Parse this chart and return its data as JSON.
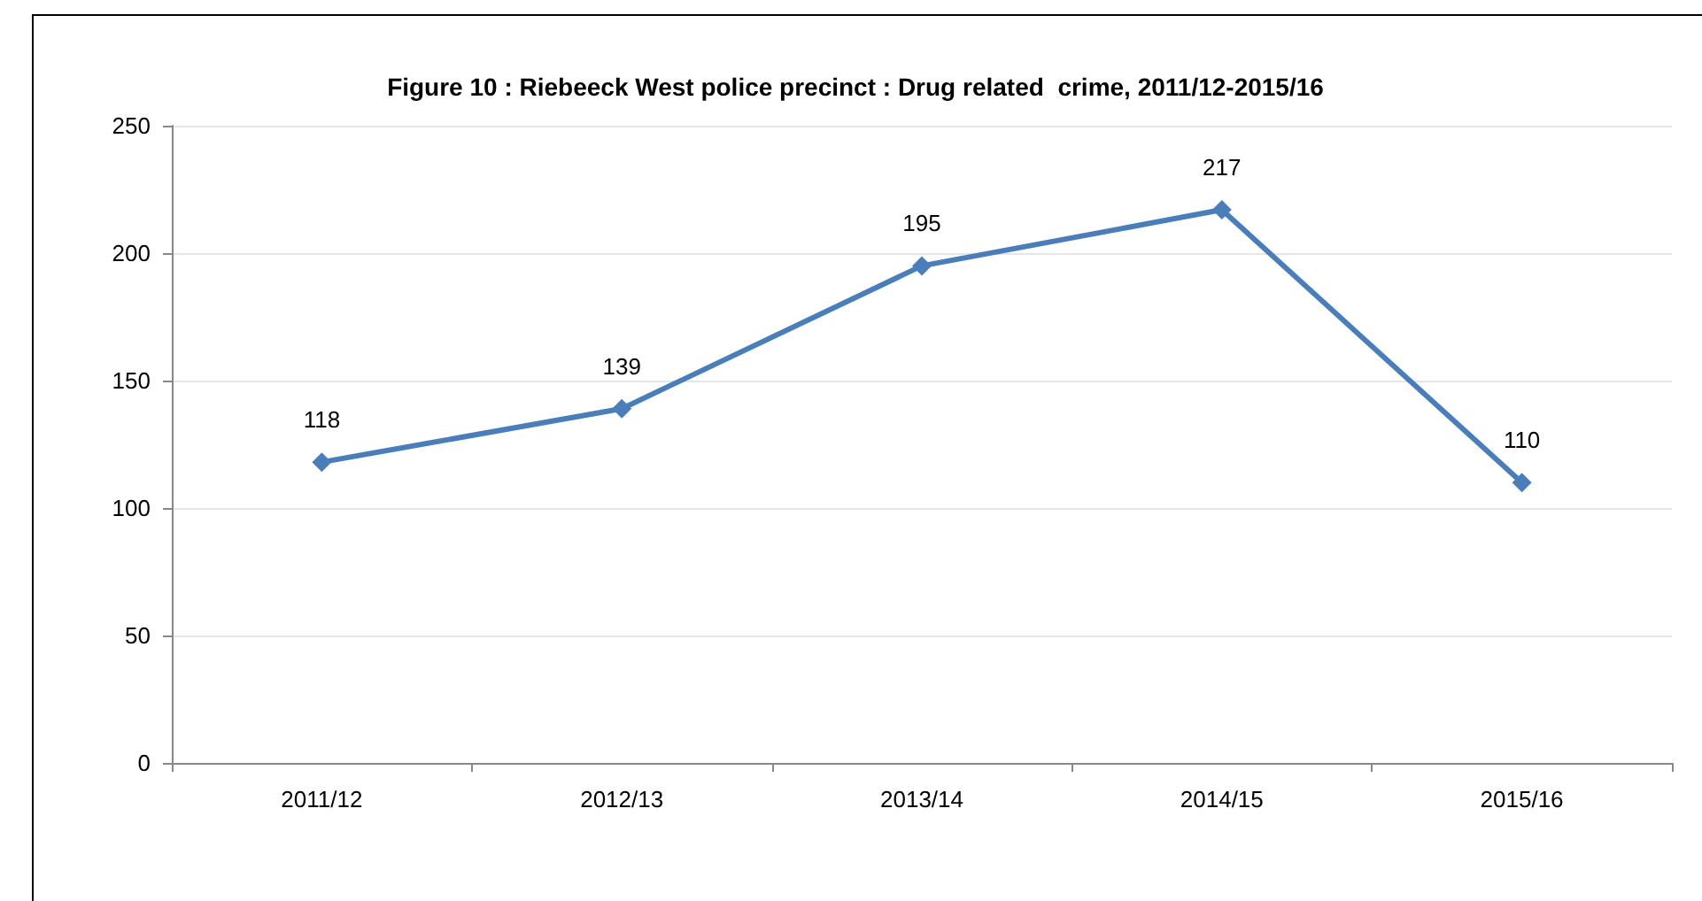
{
  "chart_data": {
    "type": "line",
    "title": "Figure 10 : Riebeeck West police precinct : Drug related  crime, 2011/12-2015/16",
    "categories": [
      "2011/12",
      "2012/13",
      "2013/14",
      "2014/15",
      "2015/16"
    ],
    "series": [
      {
        "color": "#4a7ebb",
        "values": [
          118,
          139,
          195,
          217,
          110
        ]
      }
    ],
    "ylim": [
      0,
      250
    ],
    "yticks": [
      0,
      50,
      100,
      150,
      200,
      250
    ],
    "grid": "y",
    "marker": "diamond",
    "line_style": "solid",
    "data_labels": true
  }
}
